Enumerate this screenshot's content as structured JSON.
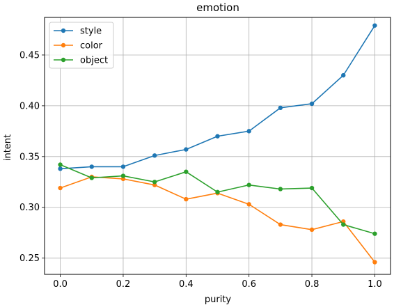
{
  "chart_data": {
    "type": "line",
    "title": "emotion",
    "xlabel": "purity",
    "ylabel": "intent",
    "x": [
      0.0,
      0.1,
      0.2,
      0.3,
      0.4,
      0.5,
      0.6,
      0.7,
      0.8,
      0.9,
      1.0
    ],
    "xlim": [
      -0.05,
      1.05
    ],
    "ylim": [
      0.234,
      0.487
    ],
    "xticks": [
      0.0,
      0.2,
      0.4,
      0.6,
      0.8,
      1.0
    ],
    "xtick_labels": [
      "0.0",
      "0.2",
      "0.4",
      "0.6",
      "0.8",
      "1.0"
    ],
    "yticks": [
      0.25,
      0.3,
      0.35,
      0.4,
      0.45
    ],
    "ytick_labels": [
      "0.25",
      "0.30",
      "0.35",
      "0.40",
      "0.45"
    ],
    "grid": true,
    "legend_position": "upper-left",
    "series": [
      {
        "name": "style",
        "color": "#1f77b4",
        "values": [
          0.338,
          0.34,
          0.34,
          0.351,
          0.357,
          0.37,
          0.375,
          0.398,
          0.402,
          0.43,
          0.479
        ]
      },
      {
        "name": "color",
        "color": "#ff7f0e",
        "values": [
          0.319,
          0.33,
          0.328,
          0.322,
          0.308,
          0.314,
          0.303,
          0.283,
          0.278,
          0.286,
          0.246
        ]
      },
      {
        "name": "object",
        "color": "#2ca02c",
        "values": [
          0.342,
          0.329,
          0.331,
          0.325,
          0.335,
          0.315,
          0.322,
          0.318,
          0.319,
          0.283,
          0.274
        ]
      }
    ]
  }
}
